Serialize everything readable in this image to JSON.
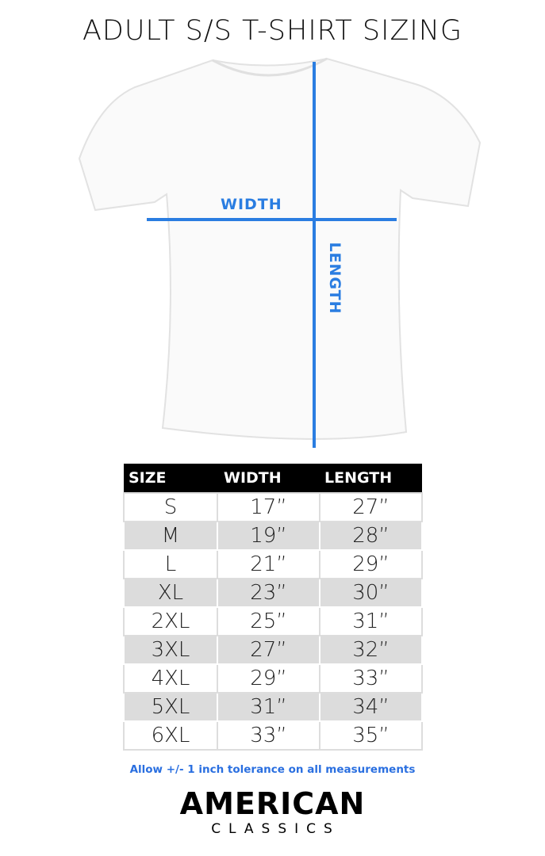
{
  "title": "ADULT S/S T-SHIRT SIZING",
  "diagram": {
    "width_label": "WIDTH",
    "length_label": "LENGTH",
    "line_color": "#2a7de1"
  },
  "table": {
    "headers": [
      "SIZE",
      "WIDTH",
      "LENGTH"
    ],
    "rows": [
      [
        "S",
        "17”",
        "27”"
      ],
      [
        "M",
        "19”",
        "28”"
      ],
      [
        "L",
        "21”",
        "29”"
      ],
      [
        "XL",
        "23”",
        "30”"
      ],
      [
        "2XL",
        "25”",
        "31”"
      ],
      [
        "3XL",
        "27”",
        "32”"
      ],
      [
        "4XL",
        "29”",
        "33”"
      ],
      [
        "5XL",
        "31”",
        "34”"
      ],
      [
        "6XL",
        "33”",
        "35”"
      ]
    ]
  },
  "note": "Allow +/- 1 inch tolerance on all measurements",
  "brand": {
    "line1": "AMERICAN",
    "line2": "CLASSICS"
  }
}
